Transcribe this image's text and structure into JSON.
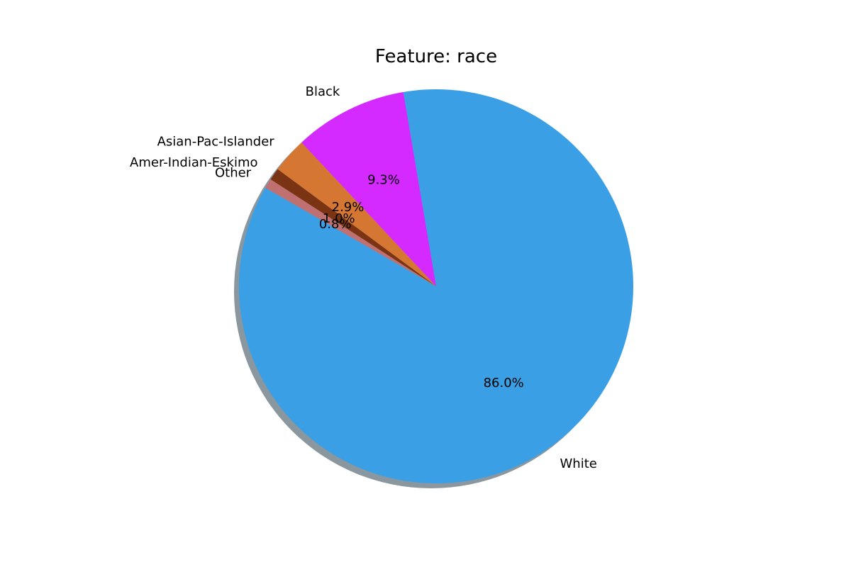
{
  "chart_data": {
    "type": "pie",
    "title": "Feature: race",
    "start_angle_deg": 150,
    "direction": "counterclockwise",
    "shadow": true,
    "slices": [
      {
        "label": "White",
        "value": 86.0,
        "pct_label": "86.0%",
        "color": "#3b9fe6"
      },
      {
        "label": "Black",
        "value": 9.3,
        "pct_label": "9.3%",
        "color": "#d42aff"
      },
      {
        "label": "Asian-Pac-Islander",
        "value": 2.9,
        "pct_label": "2.9%",
        "color": "#d67633"
      },
      {
        "label": "Amer-Indian-Eskimo",
        "value": 1.0,
        "pct_label": "1.0%",
        "color": "#7a3413"
      },
      {
        "label": "Other",
        "value": 0.8,
        "pct_label": "0.8%",
        "color": "#c07070"
      }
    ]
  }
}
